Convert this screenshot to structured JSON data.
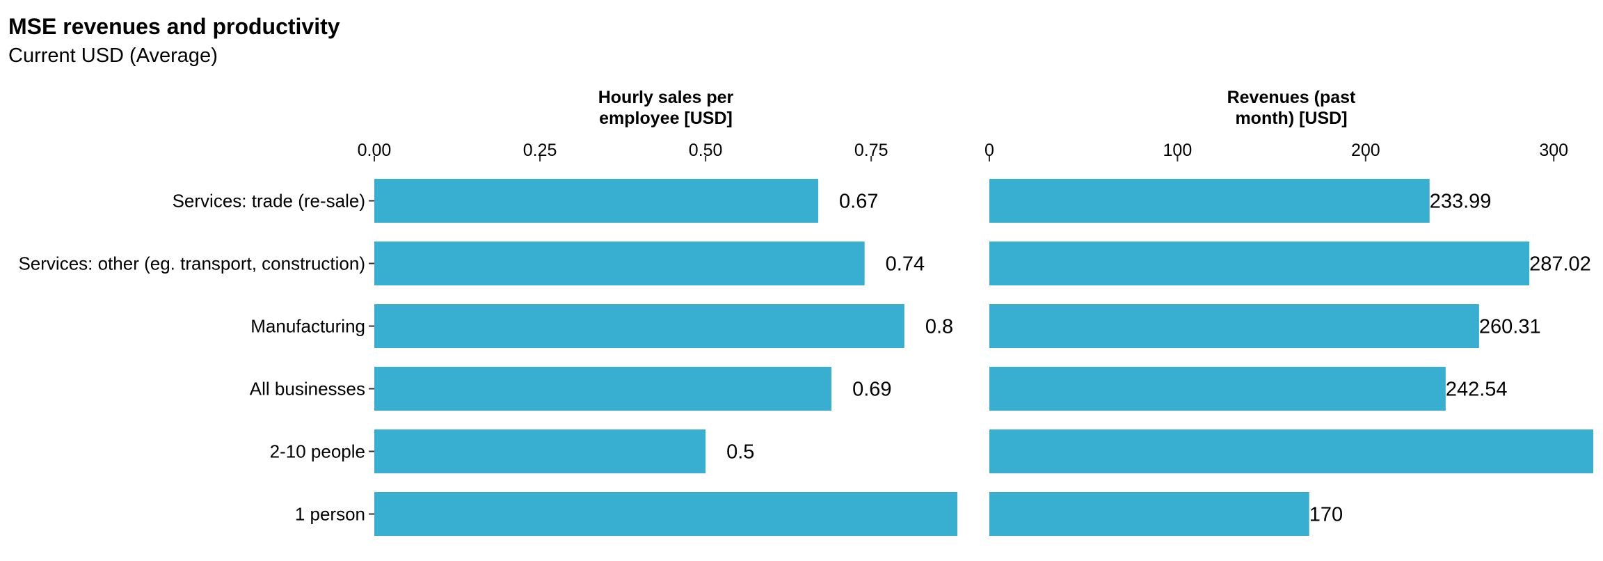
{
  "header": {
    "title": "MSE revenues and productivity",
    "subtitle": "Current USD (Average)"
  },
  "colors": {
    "bar": "#38aed1"
  },
  "chart_data": [
    {
      "type": "bar",
      "orientation": "horizontal",
      "title": "Hourly sales per employee [USD]",
      "title_lines": [
        "Hourly sales per",
        "employee [USD]"
      ],
      "categories": [
        "Services: trade (re-sale)",
        "Services: other (eg. transport, construction)",
        "Manufacturing",
        "All businesses",
        "2-10 people",
        "1 person"
      ],
      "values": [
        0.67,
        0.74,
        0.8,
        0.69,
        0.5,
        0.88
      ],
      "data_labels": [
        "0.67",
        "0.74",
        "0.8",
        "0.69",
        "0.5",
        ""
      ],
      "xlim": [
        0,
        0.88
      ],
      "ticks": [
        0,
        0.25,
        0.5,
        0.75
      ],
      "tick_labels": [
        "0.00",
        "0.25",
        "0.50",
        "0.75"
      ],
      "axis_position": "top",
      "grid": false
    },
    {
      "type": "bar",
      "orientation": "horizontal",
      "title": "Revenues (past month) [USD]",
      "title_lines": [
        "Revenues (past",
        "month) [USD]"
      ],
      "categories": [
        "Services: trade (re-sale)",
        "Services: other (eg. transport, construction)",
        "Manufacturing",
        "All businesses",
        "2-10 people",
        "1 person"
      ],
      "values": [
        233.99,
        287.02,
        260.31,
        242.54,
        321,
        170
      ],
      "data_labels": [
        "233.99",
        "287.02",
        "260.31",
        "242.54",
        "",
        "170"
      ],
      "xlim": [
        0,
        321
      ],
      "ticks": [
        0,
        100,
        200,
        300
      ],
      "tick_labels": [
        "0",
        "100",
        "200",
        "300"
      ],
      "axis_position": "top",
      "grid": false
    }
  ]
}
